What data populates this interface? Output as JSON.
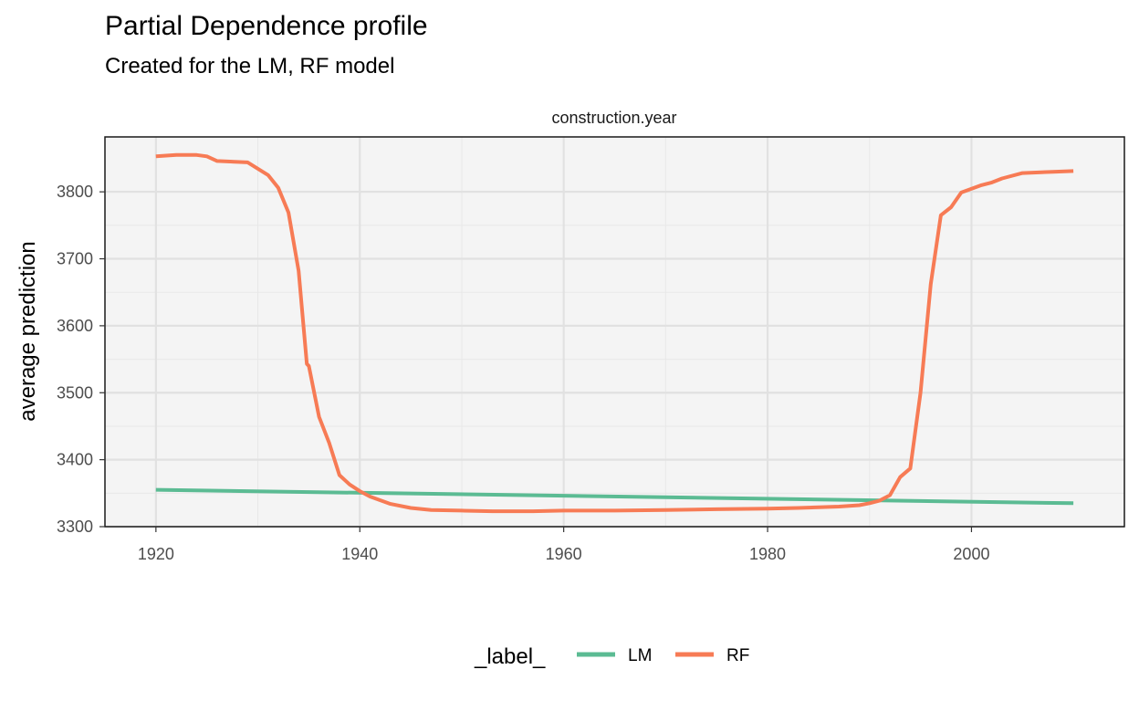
{
  "chart_data": {
    "type": "line",
    "title": "Partial Dependence profile",
    "subtitle": "Created for the LM, RF model",
    "facet_label": "construction.year",
    "xlabel": "",
    "ylabel": "average prediction",
    "xlim": [
      1915,
      2015
    ],
    "ylim": [
      3300,
      3882
    ],
    "x_ticks": [
      1920,
      1940,
      1960,
      1980,
      2000
    ],
    "y_ticks": [
      3300,
      3400,
      3500,
      3600,
      3700,
      3800
    ],
    "grid": true,
    "legend": {
      "title": "_label_",
      "position": "bottom"
    },
    "series": [
      {
        "name": "LM",
        "color": "#5bbb93",
        "x": [
          1920,
          2010
        ],
        "y": [
          3355,
          3335
        ]
      },
      {
        "name": "RF",
        "color": "#f77b55",
        "x": [
          1920,
          1922,
          1924,
          1925,
          1926,
          1929,
          1931,
          1932,
          1933,
          1934,
          1934.8,
          1935,
          1936,
          1937,
          1938,
          1939,
          1940,
          1941,
          1943,
          1945,
          1947,
          1950,
          1953,
          1957,
          1960,
          1965,
          1970,
          1975,
          1980,
          1983,
          1985,
          1987,
          1989,
          1990,
          1991,
          1992,
          1993,
          1994,
          1995,
          1996,
          1997,
          1998,
          1999,
          2001,
          2002,
          2003,
          2005,
          2008,
          2010
        ],
        "y": [
          3853,
          3855,
          3855,
          3853,
          3846,
          3844,
          3825,
          3806,
          3769,
          3682,
          3543,
          3540,
          3464,
          3425,
          3377,
          3363,
          3353,
          3345,
          3334,
          3328,
          3325,
          3324,
          3323,
          3323,
          3324,
          3324,
          3325,
          3326,
          3327,
          3328,
          3329,
          3330,
          3332,
          3335,
          3339,
          3347,
          3374,
          3387,
          3500,
          3662,
          3765,
          3777,
          3799,
          3810,
          3814,
          3820,
          3828,
          3830,
          3831
        ]
      }
    ]
  }
}
